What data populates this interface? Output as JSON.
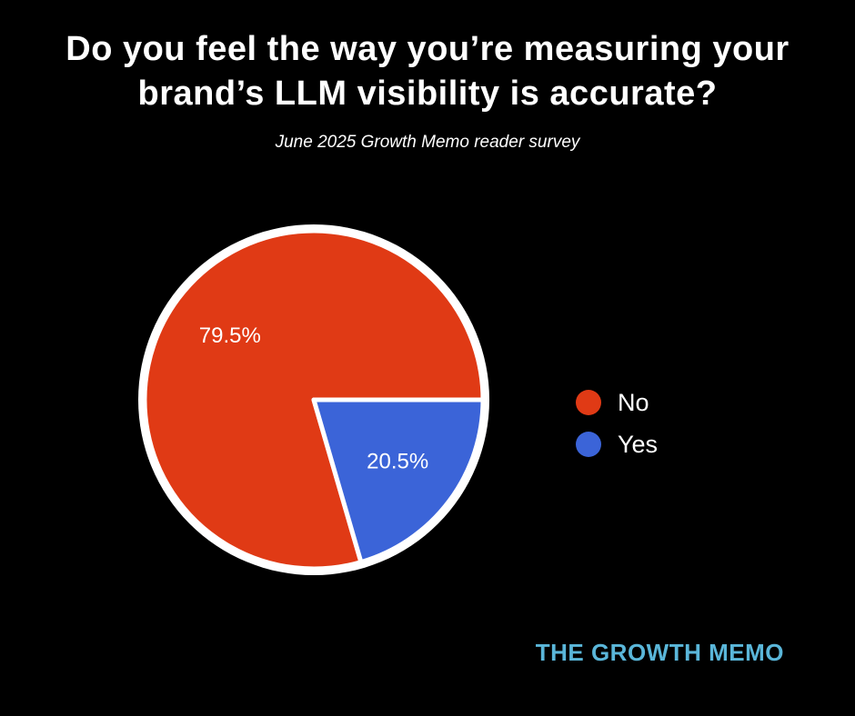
{
  "title": "Do you feel the way you’re measuring your brand’s LLM visibility is accurate?",
  "subtitle": "June 2025 Growth Memo reader survey",
  "footer": {
    "text": "THE GROWTH MEMO",
    "color": "#5ab6d9"
  },
  "colors": {
    "background": "#000000",
    "text": "#ffffff",
    "pie_ring": "#ffffff"
  },
  "chart_data": {
    "type": "pie",
    "title": "Do you feel the way you’re measuring your brand’s LLM visibility is accurate?",
    "subtitle": "June 2025 Growth Memo reader survey",
    "slices": [
      {
        "label": "No",
        "value": 79.5,
        "display": "79.5%",
        "color": "#e03a15"
      },
      {
        "label": "Yes",
        "value": 20.5,
        "display": "20.5%",
        "color": "#3b64d8"
      }
    ],
    "rotation_deg": 73.8,
    "ring_color": "#ffffff",
    "legend_position": "right",
    "legend_entries": [
      "No",
      "Yes"
    ]
  }
}
